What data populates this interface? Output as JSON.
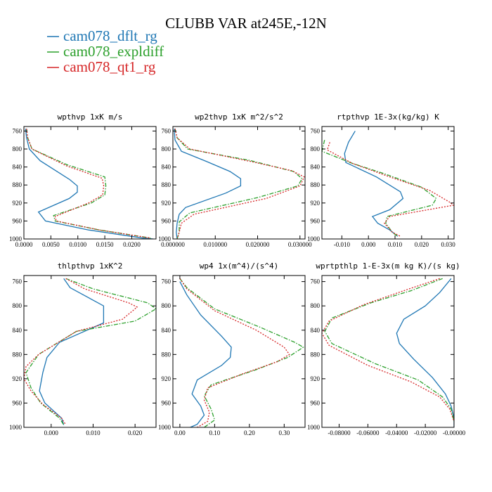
{
  "figure": {
    "title": "CLUBB VAR at245E,-12N"
  },
  "legend": [
    {
      "name": "cam078_dflt_rg",
      "color": "#1f77b4",
      "dash": "solid"
    },
    {
      "name": "cam078_expldiff",
      "color": "#2ca02c",
      "dash": "dashdot"
    },
    {
      "name": "cam078_qt1_rg",
      "color": "#d62728",
      "dash": "dotted"
    }
  ],
  "chart_data": [
    {
      "type": "line",
      "title": "wpthvp  1xK m/s",
      "ylim": [
        1000,
        750
      ],
      "yticks": [
        760,
        800,
        840,
        880,
        920,
        960,
        1000
      ],
      "xlim": [
        0,
        0.0245
      ],
      "xticks": [
        0,
        0.005,
        0.01,
        0.015,
        0.02
      ],
      "xtick_labels": [
        "0.0000",
        "0.0050",
        "0.0100",
        "0.0150",
        "0.0200"
      ],
      "series": [
        {
          "name": "cam078_dflt_rg",
          "points": [
            [
              0.0003,
              755
            ],
            [
              0.0005,
              775
            ],
            [
              0.001,
              800
            ],
            [
              0.003,
              826
            ],
            [
              0.0085,
              868
            ],
            [
              0.0099,
              882
            ],
            [
              0.0099,
              896
            ],
            [
              0.0084,
              910
            ],
            [
              0.0027,
              940
            ],
            [
              0.004,
              960
            ],
            [
              0.012,
              980
            ],
            [
              0.022,
              998
            ],
            [
              0.024,
              1000
            ]
          ]
        },
        {
          "name": "cam078_expldiff",
          "points": [
            [
              0.0005,
              755
            ],
            [
              0.0007,
              775
            ],
            [
              0.0015,
              800
            ],
            [
              0.008,
              835
            ],
            [
              0.015,
              862
            ],
            [
              0.0152,
              882
            ],
            [
              0.015,
              902
            ],
            [
              0.0125,
              920
            ],
            [
              0.0055,
              948
            ],
            [
              0.0058,
              960
            ],
            [
              0.014,
              980
            ],
            [
              0.0235,
              998
            ]
          ]
        },
        {
          "name": "cam078_qt1_rg",
          "points": [
            [
              0.0005,
              755
            ],
            [
              0.0007,
              775
            ],
            [
              0.0015,
              800
            ],
            [
              0.008,
              838
            ],
            [
              0.0145,
              865
            ],
            [
              0.0148,
              882
            ],
            [
              0.0146,
              902
            ],
            [
              0.012,
              920
            ],
            [
              0.0058,
              950
            ],
            [
              0.006,
              960
            ],
            [
              0.014,
              980
            ],
            [
              0.0235,
              998
            ]
          ]
        }
      ]
    },
    {
      "type": "line",
      "title": "wp2thvp  1xK m^2/s^2",
      "ylim": [
        1000,
        750
      ],
      "yticks": [
        760,
        800,
        840,
        880,
        920,
        960,
        1000
      ],
      "xlim": [
        0,
        0.0312
      ],
      "xticks": [
        0,
        0.01,
        0.02,
        0.03
      ],
      "xtick_labels": [
        "0.000000",
        "0.010000",
        "0.020000",
        "0.030000"
      ],
      "series": [
        {
          "name": "cam078_dflt_rg",
          "points": [
            [
              0.0003,
              755
            ],
            [
              0.0005,
              780
            ],
            [
              0.002,
              805
            ],
            [
              0.008,
              828
            ],
            [
              0.0135,
              850
            ],
            [
              0.016,
              866
            ],
            [
              0.016,
              882
            ],
            [
              0.0125,
              898
            ],
            [
              0.003,
              930
            ],
            [
              0.0015,
              945
            ],
            [
              0.001,
              965
            ],
            [
              0.0008,
              985
            ],
            [
              0.001,
              1000
            ]
          ]
        },
        {
          "name": "cam078_expldiff",
          "points": [
            [
              0.0005,
              755
            ],
            [
              0.001,
              775
            ],
            [
              0.0035,
              800
            ],
            [
              0.018,
              825
            ],
            [
              0.0285,
              850
            ],
            [
              0.0305,
              866
            ],
            [
              0.0295,
              882
            ],
            [
              0.02,
              908
            ],
            [
              0.004,
              942
            ],
            [
              0.0015,
              962
            ],
            [
              0.0015,
              985
            ],
            [
              0.001,
              1000
            ]
          ]
        },
        {
          "name": "cam078_qt1_rg",
          "points": [
            [
              0.0005,
              755
            ],
            [
              0.001,
              775
            ],
            [
              0.004,
              800
            ],
            [
              0.0185,
              828
            ],
            [
              0.028,
              848
            ],
            [
              0.031,
              862
            ],
            [
              0.03,
              882
            ],
            [
              0.022,
              910
            ],
            [
              0.005,
              945
            ],
            [
              0.002,
              965
            ],
            [
              0.0015,
              985
            ],
            [
              0.001,
              1000
            ]
          ]
        }
      ]
    },
    {
      "type": "line",
      "title": "rtpthvp  1E-3x(kg/kg) K",
      "ylim": [
        1000,
        750
      ],
      "yticks": [
        760,
        800,
        840,
        880,
        920,
        960,
        1000
      ],
      "xlim": [
        -0.0175,
        0.0322
      ],
      "xticks": [
        -0.01,
        0,
        0.01,
        0.02,
        0.03
      ],
      "xtick_labels": [
        "-0.010",
        "0.000",
        "0.010",
        "0.020",
        "0.030"
      ],
      "series": [
        {
          "name": "cam078_dflt_rg",
          "points": [
            [
              -0.005,
              760
            ],
            [
              -0.0075,
              785
            ],
            [
              -0.009,
              810
            ],
            [
              -0.0085,
              830
            ],
            [
              0.003,
              862
            ],
            [
              0.012,
              895
            ],
            [
              0.013,
              910
            ],
            [
              0.008,
              935
            ],
            [
              0.0015,
              950
            ],
            [
              0.0035,
              965
            ],
            [
              0.008,
              980
            ],
            [
              0.011,
              994
            ]
          ]
        },
        {
          "name": "cam078_expldiff",
          "points": [
            [
              -0.0165,
              780
            ],
            [
              -0.0175,
              805
            ],
            [
              -0.006,
              832
            ],
            [
              0.006,
              855
            ],
            [
              0.02,
              885
            ],
            [
              0.0255,
              910
            ],
            [
              0.024,
              925
            ],
            [
              0.007,
              950
            ],
            [
              0.0065,
              965
            ],
            [
              0.009,
              985
            ],
            [
              0.011,
              994
            ]
          ]
        },
        {
          "name": "cam078_qt1_rg",
          "points": [
            [
              -0.0145,
              785
            ],
            [
              -0.0155,
              802
            ],
            [
              -0.006,
              832
            ],
            [
              0.008,
              862
            ],
            [
              0.023,
              892
            ],
            [
              0.0305,
              918
            ],
            [
              0.032,
              925
            ],
            [
              0.008,
              950
            ],
            [
              0.006,
              965
            ],
            [
              0.009,
              985
            ],
            [
              0.012,
              994
            ]
          ]
        }
      ]
    },
    {
      "type": "line",
      "title": "thlpthvp  1xK^2",
      "ylim": [
        1000,
        750
      ],
      "yticks": [
        760,
        800,
        840,
        880,
        920,
        960,
        1000
      ],
      "xlim": [
        -0.0065,
        0.025
      ],
      "xticks": [
        0,
        0.01,
        0.02
      ],
      "xtick_labels": [
        "0.000",
        "0.010",
        "0.020"
      ],
      "series": [
        {
          "name": "cam078_dflt_rg",
          "points": [
            [
              0.003,
              755
            ],
            [
              0.0045,
              770
            ],
            [
              0.0125,
              800
            ],
            [
              0.0125,
              828
            ],
            [
              0.002,
              860
            ],
            [
              -0.001,
              885
            ],
            [
              -0.002,
              910
            ],
            [
              -0.0028,
              940
            ],
            [
              -0.0015,
              960
            ],
            [
              0.0025,
              985
            ],
            [
              0.003,
              996
            ]
          ]
        },
        {
          "name": "cam078_expldiff",
          "points": [
            [
              0.0035,
              755
            ],
            [
              0.01,
              772
            ],
            [
              0.023,
              795
            ],
            [
              0.025,
              805
            ],
            [
              0.02,
              825
            ],
            [
              0.006,
              842
            ],
            [
              -0.003,
              880
            ],
            [
              -0.0045,
              895
            ],
            [
              -0.006,
              910
            ],
            [
              -0.0048,
              935
            ],
            [
              -0.0025,
              960
            ],
            [
              0.002,
              985
            ],
            [
              0.003,
              996
            ]
          ]
        },
        {
          "name": "cam078_qt1_rg",
          "points": [
            [
              0.0035,
              755
            ],
            [
              0.008,
              772
            ],
            [
              0.0185,
              795
            ],
            [
              0.0205,
              802
            ],
            [
              0.017,
              822
            ],
            [
              0.006,
              842
            ],
            [
              -0.003,
              880
            ],
            [
              -0.006,
              900
            ],
            [
              -0.0065,
              920
            ],
            [
              -0.0048,
              940
            ],
            [
              -0.002,
              962
            ],
            [
              0.0025,
              985
            ],
            [
              0.0035,
              996
            ]
          ]
        }
      ]
    },
    {
      "type": "line",
      "title": "wp4  1x(m^4)/(s^4)",
      "ylim": [
        1000,
        750
      ],
      "yticks": [
        760,
        800,
        840,
        880,
        920,
        960,
        1000
      ],
      "xlim": [
        -0.02,
        0.36
      ],
      "xticks": [
        0,
        0.1,
        0.2,
        0.3
      ],
      "xtick_labels": [
        "0.00",
        "0.10",
        "0.20",
        "0.30"
      ],
      "series": [
        {
          "name": "cam078_dflt_rg",
          "points": [
            [
              0.0,
              760
            ],
            [
              0.02,
              782
            ],
            [
              0.06,
              815
            ],
            [
              0.12,
              850
            ],
            [
              0.148,
              868
            ],
            [
              0.145,
              885
            ],
            [
              0.12,
              898
            ],
            [
              0.05,
              922
            ],
            [
              0.035,
              945
            ],
            [
              0.06,
              965
            ],
            [
              0.07,
              980
            ],
            [
              0.05,
              995
            ],
            [
              0.03,
              1000
            ]
          ]
        },
        {
          "name": "cam078_expldiff",
          "points": [
            [
              0.0,
              755
            ],
            [
              0.02,
              770
            ],
            [
              0.1,
              805
            ],
            [
              0.23,
              835
            ],
            [
              0.33,
              860
            ],
            [
              0.355,
              868
            ],
            [
              0.31,
              885
            ],
            [
              0.22,
              905
            ],
            [
              0.09,
              930
            ],
            [
              0.07,
              948
            ],
            [
              0.09,
              970
            ],
            [
              0.1,
              988
            ],
            [
              0.07,
              1000
            ]
          ]
        },
        {
          "name": "cam078_qt1_rg",
          "points": [
            [
              0.0,
              755
            ],
            [
              0.02,
              772
            ],
            [
              0.1,
              808
            ],
            [
              0.22,
              840
            ],
            [
              0.3,
              868
            ],
            [
              0.315,
              880
            ],
            [
              0.28,
              892
            ],
            [
              0.18,
              912
            ],
            [
              0.08,
              935
            ],
            [
              0.07,
              955
            ],
            [
              0.085,
              975
            ],
            [
              0.08,
              990
            ],
            [
              0.05,
              1000
            ]
          ]
        }
      ]
    },
    {
      "type": "line",
      "title": "wprtpthlp  1-E-3x(m kg K)/(s kg)",
      "ylim": [
        1000,
        750
      ],
      "yticks": [
        760,
        800,
        840,
        880,
        920,
        960,
        1000
      ],
      "xlim": [
        -0.092,
        0.0
      ],
      "xticks": [
        -0.08,
        -0.06,
        -0.04,
        -0.02,
        0
      ],
      "xtick_labels": [
        "-0.08000",
        "-0.06000",
        "-0.04000",
        "-0.02000",
        "-0.00000"
      ],
      "series": [
        {
          "name": "cam078_dflt_rg",
          "points": [
            [
              -0.002,
              755
            ],
            [
              -0.01,
              778
            ],
            [
              -0.02,
              800
            ],
            [
              -0.035,
              822
            ],
            [
              -0.04,
              845
            ],
            [
              -0.038,
              862
            ],
            [
              -0.028,
              888
            ],
            [
              -0.015,
              918
            ],
            [
              -0.006,
              945
            ],
            [
              -0.002,
              965
            ],
            [
              0.0,
              985
            ],
            [
              0.0,
              1000
            ]
          ]
        },
        {
          "name": "cam078_expldiff",
          "points": [
            [
              -0.008,
              755
            ],
            [
              -0.03,
              775
            ],
            [
              -0.058,
              795
            ],
            [
              -0.085,
              820
            ],
            [
              -0.09,
              842
            ],
            [
              -0.085,
              862
            ],
            [
              -0.055,
              895
            ],
            [
              -0.025,
              922
            ],
            [
              -0.008,
              950
            ],
            [
              -0.002,
              970
            ],
            [
              0.0,
              990
            ]
          ]
        },
        {
          "name": "cam078_qt1_rg",
          "points": [
            [
              -0.01,
              755
            ],
            [
              -0.035,
              775
            ],
            [
              -0.063,
              798
            ],
            [
              -0.087,
              825
            ],
            [
              -0.092,
              845
            ],
            [
              -0.087,
              865
            ],
            [
              -0.06,
              898
            ],
            [
              -0.03,
              925
            ],
            [
              -0.01,
              950
            ],
            [
              -0.003,
              970
            ],
            [
              0.0,
              990
            ]
          ]
        }
      ]
    }
  ]
}
